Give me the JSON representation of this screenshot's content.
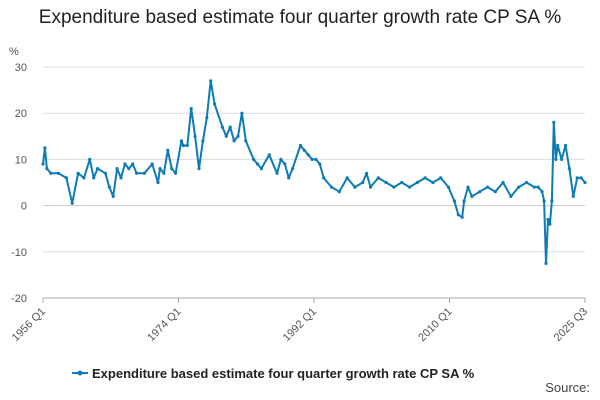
{
  "title": "Expenditure based estimate four quarter growth rate CP SA %",
  "source_label": "Source:",
  "colors": {
    "series": "#0d7bb5",
    "grid": "#dddddd",
    "axis": "#aaaaaa"
  },
  "chart_data": {
    "type": "line",
    "title": "Expenditure based estimate four quarter growth rate CP SA %",
    "ylabel": "%",
    "xlabel": "",
    "ylim": [
      -20,
      30
    ],
    "yticks": [
      -20,
      -10,
      0,
      10,
      20,
      30
    ],
    "xticks": [
      "1956 Q1",
      "1974 Q1",
      "1992 Q1",
      "2010 Q1",
      "2025 Q3"
    ],
    "xrange": [
      1956.0,
      2025.5
    ],
    "grid": true,
    "legend": "bottom",
    "series": [
      {
        "name": "Expenditure based estimate four quarter growth rate CP SA %",
        "x": [
          1956.0,
          1956.25,
          1956.5,
          1957.0,
          1958.0,
          1959.0,
          1959.75,
          1960.5,
          1961.25,
          1962.0,
          1962.5,
          1963.0,
          1964.0,
          1964.5,
          1965.0,
          1965.5,
          1966.0,
          1966.5,
          1967.0,
          1967.5,
          1968.0,
          1969.0,
          1970.0,
          1970.75,
          1971.0,
          1971.5,
          1972.0,
          1972.5,
          1973.0,
          1973.75,
          1974.0,
          1974.5,
          1975.0,
          1975.5,
          1976.0,
          1976.5,
          1977.0,
          1977.5,
          1978.0,
          1979.0,
          1979.5,
          1980.0,
          1980.5,
          1981.0,
          1981.5,
          1982.0,
          1983.0,
          1983.5,
          1984.0,
          1985.0,
          1986.0,
          1986.5,
          1987.0,
          1987.5,
          1988.0,
          1989.0,
          1989.5,
          1990.0,
          1990.5,
          1991.0,
          1991.5,
          1992.0,
          1993.0,
          1994.0,
          1995.0,
          1996.0,
          1997.0,
          1997.5,
          1998.0,
          1999.0,
          2000.0,
          2001.0,
          2002.0,
          2003.0,
          2004.0,
          2005.0,
          2006.0,
          2007.0,
          2008.0,
          2008.75,
          2009.25,
          2009.75,
          2010.0,
          2010.5,
          2011.0,
          2012.0,
          2013.0,
          2014.0,
          2015.0,
          2016.0,
          2017.0,
          2018.0,
          2019.0,
          2019.5,
          2020.0,
          2020.25,
          2020.5,
          2020.75,
          2021.0,
          2021.25,
          2021.5,
          2021.75,
          2022.0,
          2022.5,
          2023.0,
          2023.5,
          2024.0,
          2024.5,
          2025.0,
          2025.5
        ],
        "values": [
          9,
          12.5,
          8,
          7,
          7,
          6,
          0.5,
          7,
          6,
          10,
          6,
          8,
          7,
          4,
          2,
          8,
          6,
          9,
          8,
          9,
          7,
          7,
          9,
          5,
          8,
          7,
          12,
          8,
          7,
          14,
          13,
          13,
          21,
          15,
          8,
          14,
          19,
          27,
          22,
          17,
          15,
          17,
          14,
          15,
          20,
          14,
          10,
          9,
          8,
          11,
          7,
          10,
          9,
          6,
          8,
          13,
          12,
          11,
          10,
          10,
          9,
          6,
          4,
          3,
          6,
          4,
          5,
          7,
          4,
          6,
          5,
          4,
          5,
          4,
          5,
          6,
          5,
          6,
          4,
          1,
          -2,
          -2.5,
          1,
          4,
          2,
          3,
          4,
          3,
          5,
          2,
          4,
          5,
          4,
          4,
          3,
          1,
          -12.5,
          -3,
          -4,
          1,
          18,
          10,
          13,
          10,
          13,
          8,
          2,
          6,
          6,
          5
        ]
      }
    ]
  }
}
